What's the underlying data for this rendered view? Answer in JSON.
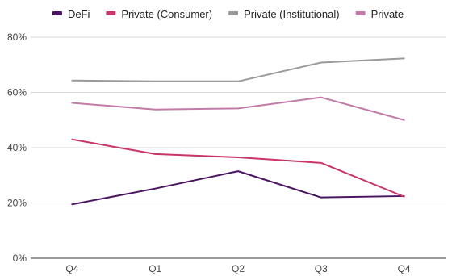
{
  "chart_data": {
    "type": "line",
    "categories": [
      "Q4",
      "Q1",
      "Q2",
      "Q3",
      "Q4"
    ],
    "ylim": [
      0,
      80
    ],
    "y_ticks": [
      0,
      20,
      40,
      60,
      80
    ],
    "y_tick_labels": [
      "0%",
      "20%",
      "40%",
      "60%",
      "80%"
    ],
    "grid": true,
    "legend_position": "top",
    "series": [
      {
        "name": "DeFi",
        "color": "#4a1560",
        "values": [
          19.5,
          25.2,
          31.5,
          22.0,
          22.5
        ]
      },
      {
        "name": "Private (Consumer)",
        "color": "#c9346a",
        "values": [
          43.0,
          37.7,
          36.5,
          34.5,
          22.3
        ]
      },
      {
        "name": "Private (Institutional)",
        "color": "#9a9a9a",
        "values": [
          64.3,
          64.0,
          64.0,
          70.8,
          72.3
        ]
      },
      {
        "name": "Private",
        "color": "#c27ba8",
        "values": [
          56.2,
          53.8,
          54.2,
          58.2,
          50.0
        ]
      }
    ]
  }
}
